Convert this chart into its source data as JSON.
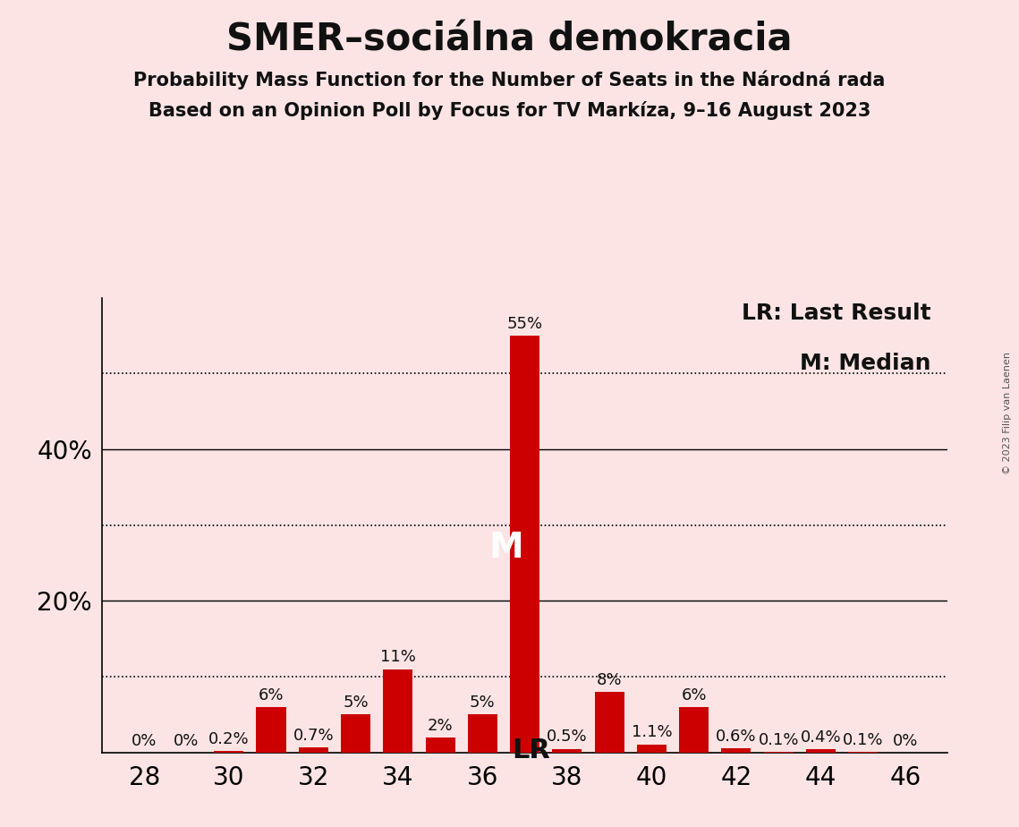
{
  "title": "SMER–sociálna demokracia",
  "subtitle1": "Probability Mass Function for the Number of Seats in the Národná rada",
  "subtitle2": "Based on an Opinion Poll by Focus for TV Markíza, 9–16 August 2023",
  "copyright": "© 2023 Filip van Laenen",
  "seats": [
    28,
    29,
    30,
    31,
    32,
    33,
    34,
    35,
    36,
    37,
    38,
    39,
    40,
    41,
    42,
    43,
    44,
    45,
    46
  ],
  "probabilities": [
    0.0,
    0.0,
    0.2,
    6.0,
    0.7,
    5.0,
    11.0,
    2.0,
    5.0,
    55.0,
    0.5,
    8.0,
    1.1,
    6.0,
    0.6,
    0.1,
    0.4,
    0.1,
    0.0
  ],
  "labels": [
    "0%",
    "0%",
    "0.2%",
    "6%",
    "0.7%",
    "5%",
    "11%",
    "2%",
    "5%",
    "55%",
    "0.5%",
    "8%",
    "1.1%",
    "6%",
    "0.6%",
    "0.1%",
    "0.4%",
    "0.1%",
    "0%"
  ],
  "median_seat": 37,
  "last_result_seat": 38,
  "bar_color": "#cc0000",
  "background_color": "#fce4e4",
  "text_color": "#111111",
  "solid_line_values": [
    20,
    40
  ],
  "dotted_line_values": [
    10,
    30,
    50
  ],
  "ytick_visible": [
    20,
    40
  ],
  "ytick_values": [
    10,
    20,
    30,
    40,
    50
  ],
  "xlim": [
    27.0,
    47.0
  ],
  "ylim": [
    0,
    60
  ],
  "xtick_positions": [
    28,
    30,
    32,
    34,
    36,
    38,
    40,
    42,
    44,
    46
  ],
  "lr_label": "LR",
  "median_label": "M",
  "legend_lr": "LR: Last Result",
  "legend_m": "M: Median",
  "title_fontsize": 30,
  "subtitle_fontsize": 15,
  "axis_tick_fontsize": 20,
  "bar_label_fontsize": 13,
  "legend_fontsize": 18,
  "median_fontsize": 28,
  "lr_fontsize": 22,
  "ytick_fontsize": 20,
  "copyright_fontsize": 8
}
